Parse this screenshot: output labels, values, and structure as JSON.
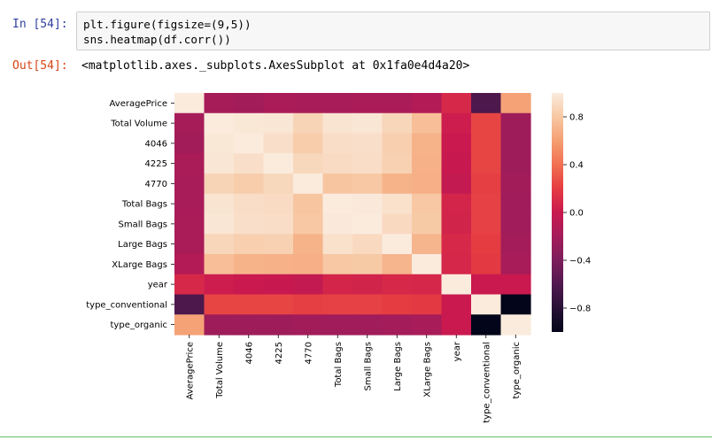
{
  "notebook": {
    "input_prompt": "In [54]:",
    "code_lines": [
      "plt.figure(figsize=(9,5))",
      "sns.heatmap(df.corr())"
    ],
    "output_prompt": "Out[54]:",
    "output_text": "<matplotlib.axes._subplots.AxesSubplot at 0x1fa0e4d4a20>"
  },
  "colors": {
    "prompt_in": "#303f9f",
    "prompt_out": "#d84315",
    "cell_background": "#f7f7f7",
    "cell_border": "#cfcfcf",
    "colormap": "rocket"
  },
  "chart_data": {
    "type": "heatmap",
    "title": "",
    "row_labels": [
      "AveragePrice",
      "Total Volume",
      "4046",
      "4225",
      "4770",
      "Total Bags",
      "Small Bags",
      "Large Bags",
      "XLarge Bags",
      "year",
      "type_conventional",
      "type_organic"
    ],
    "column_labels": [
      "AveragePrice",
      "Total Volume",
      "4046",
      "4225",
      "4770",
      "Total Bags",
      "Small Bags",
      "Large Bags",
      "XLarge Bags",
      "year",
      "type_conventional",
      "type_organic"
    ],
    "values": [
      [
        1.0,
        -0.19,
        -0.21,
        -0.17,
        -0.18,
        -0.18,
        -0.17,
        -0.17,
        -0.12,
        0.09,
        -0.62,
        0.62
      ],
      [
        -0.19,
        1.0,
        0.98,
        0.97,
        0.87,
        0.96,
        0.97,
        0.88,
        0.75,
        0.02,
        0.23,
        -0.23
      ],
      [
        -0.21,
        0.98,
        1.0,
        0.93,
        0.83,
        0.92,
        0.93,
        0.84,
        0.7,
        0.0,
        0.23,
        -0.23
      ],
      [
        -0.17,
        0.97,
        0.93,
        1.0,
        0.89,
        0.91,
        0.92,
        0.85,
        0.69,
        -0.01,
        0.23,
        -0.23
      ],
      [
        -0.18,
        0.87,
        0.83,
        0.89,
        1.0,
        0.79,
        0.8,
        0.7,
        0.68,
        -0.04,
        0.21,
        -0.21
      ],
      [
        -0.18,
        0.96,
        0.92,
        0.91,
        0.79,
        1.0,
        0.99,
        0.94,
        0.8,
        0.07,
        0.22,
        -0.22
      ],
      [
        -0.17,
        0.97,
        0.93,
        0.92,
        0.8,
        0.99,
        1.0,
        0.9,
        0.81,
        0.06,
        0.22,
        -0.22
      ],
      [
        -0.17,
        0.88,
        0.84,
        0.85,
        0.7,
        0.94,
        0.9,
        1.0,
        0.71,
        0.09,
        0.2,
        -0.2
      ],
      [
        -0.12,
        0.75,
        0.7,
        0.69,
        0.68,
        0.8,
        0.81,
        0.71,
        1.0,
        0.08,
        0.18,
        -0.18
      ],
      [
        0.09,
        0.02,
        0.0,
        -0.01,
        -0.04,
        0.07,
        0.06,
        0.09,
        0.08,
        1.0,
        -0.0,
        0.0
      ],
      [
        -0.62,
        0.23,
        0.23,
        0.23,
        0.21,
        0.22,
        0.22,
        0.2,
        0.18,
        -0.0,
        1.0,
        -1.0
      ],
      [
        0.62,
        -0.23,
        -0.23,
        -0.23,
        -0.21,
        -0.22,
        -0.22,
        -0.2,
        -0.18,
        0.0,
        -1.0,
        1.0
      ]
    ],
    "vmin": -1.0,
    "vmax": 1.0,
    "colorbar_ticks": [
      0.8,
      0.4,
      0.0,
      -0.4,
      -0.8
    ],
    "colorbar_tick_labels": [
      "0.8",
      "0.4",
      "0.0",
      "−0.4",
      "−0.8"
    ],
    "grid": false,
    "legend": "colorbar-right"
  }
}
